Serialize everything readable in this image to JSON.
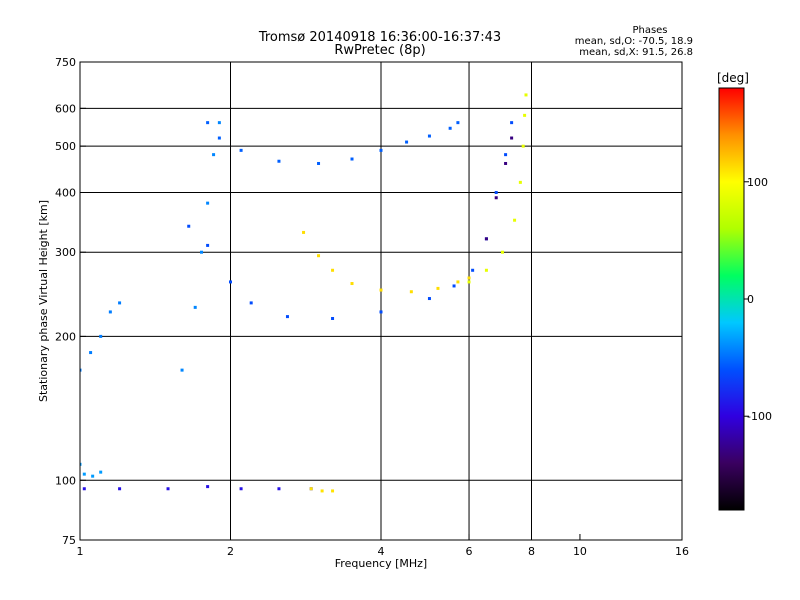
{
  "chart_data": {
    "type": "scatter",
    "title": "Tromsø 20140918 16:36:00-16:37:43",
    "subtitle": "RwPretec (8p)",
    "xlabel": "Frequency [MHz]",
    "ylabel": "Stationary phase Virtual Height [km]",
    "x_scale": "log",
    "y_scale": "log",
    "xlim": [
      1,
      16
    ],
    "ylim": [
      75,
      750
    ],
    "x_ticks": [
      1,
      2,
      4,
      6,
      8,
      10,
      16
    ],
    "x_grid": [
      2,
      4,
      6,
      8
    ],
    "y_ticks": [
      75,
      100,
      200,
      300,
      400,
      500,
      600,
      750
    ],
    "y_grid": [
      100,
      200,
      300,
      400,
      500,
      600
    ],
    "grid": true,
    "phases_header": "Phases",
    "phases_o": "mean, sd,O: -70.5, 18.9",
    "phases_x": "mean, sd,X:  91.5, 26.8",
    "colorbar": {
      "unit": "[deg]",
      "min": -180,
      "max": 180,
      "ticks": [
        100,
        0,
        -100
      ],
      "colors": [
        "#000000",
        "#3a0060",
        "#3000e0",
        "#0050ff",
        "#00c8ff",
        "#00ff60",
        "#b0ff00",
        "#ffff00",
        "#ff9000",
        "#ff0000"
      ]
    },
    "traces": [
      {
        "name": "",
        "phase": -92,
        "points": [
          [
            1.02,
            96
          ],
          [
            1.2,
            96
          ],
          [
            1.5,
            96
          ],
          [
            1.8,
            97
          ],
          [
            2.1,
            96
          ],
          [
            2.5,
            96
          ],
          [
            2.9,
            96
          ]
        ]
      },
      {
        "name": "",
        "phase": 110,
        "points": [
          [
            2.9,
            96
          ],
          [
            3.05,
            95
          ],
          [
            3.2,
            95
          ]
        ]
      },
      {
        "name": "",
        "phase": -45,
        "points": [
          [
            1.0,
            170
          ],
          [
            1.05,
            185
          ],
          [
            1.1,
            200
          ],
          [
            1.15,
            225
          ],
          [
            1.2,
            235
          ]
        ]
      },
      {
        "name": "",
        "phase": -35,
        "points": [
          [
            1.0,
            108
          ],
          [
            1.02,
            103
          ],
          [
            1.06,
            102
          ],
          [
            1.1,
            104
          ]
        ]
      },
      {
        "name": "",
        "phase": -42,
        "points": [
          [
            1.6,
            170
          ],
          [
            1.7,
            230
          ],
          [
            1.75,
            300
          ],
          [
            1.8,
            380
          ],
          [
            1.85,
            480
          ],
          [
            1.9,
            560
          ]
        ]
      },
      {
        "name": "",
        "phase": -55,
        "points": [
          [
            1.8,
            560
          ],
          [
            1.9,
            520
          ],
          [
            2.1,
            490
          ],
          [
            2.5,
            465
          ],
          [
            3.0,
            460
          ],
          [
            3.5,
            470
          ],
          [
            4.0,
            490
          ],
          [
            4.5,
            510
          ],
          [
            5.0,
            525
          ],
          [
            5.5,
            545
          ],
          [
            5.7,
            560
          ]
        ]
      },
      {
        "name": "",
        "phase": -62,
        "points": [
          [
            1.65,
            340
          ],
          [
            1.8,
            310
          ],
          [
            2.0,
            260
          ],
          [
            2.2,
            235
          ],
          [
            2.6,
            220
          ],
          [
            3.2,
            218
          ],
          [
            4.0,
            225
          ],
          [
            5.0,
            240
          ],
          [
            5.6,
            255
          ],
          [
            6.1,
            275
          ],
          [
            6.5,
            320
          ],
          [
            6.8,
            400
          ],
          [
            7.1,
            480
          ],
          [
            7.3,
            560
          ]
        ]
      },
      {
        "name": "",
        "phase": 112,
        "points": [
          [
            2.8,
            330
          ],
          [
            3.0,
            295
          ],
          [
            3.2,
            275
          ],
          [
            3.5,
            258
          ],
          [
            4.0,
            250
          ],
          [
            4.6,
            248
          ],
          [
            5.2,
            252
          ],
          [
            5.7,
            260
          ],
          [
            6.0,
            265
          ]
        ]
      },
      {
        "name": "",
        "phase": 88,
        "points": [
          [
            6.0,
            260
          ],
          [
            6.5,
            275
          ],
          [
            7.0,
            300
          ],
          [
            7.4,
            350
          ],
          [
            7.6,
            420
          ],
          [
            7.7,
            500
          ],
          [
            7.75,
            580
          ],
          [
            7.8,
            640
          ]
        ]
      },
      {
        "name": "",
        "phase": -130,
        "points": [
          [
            6.5,
            320
          ],
          [
            6.8,
            390
          ],
          [
            7.1,
            460
          ],
          [
            7.3,
            520
          ]
        ]
      }
    ]
  }
}
